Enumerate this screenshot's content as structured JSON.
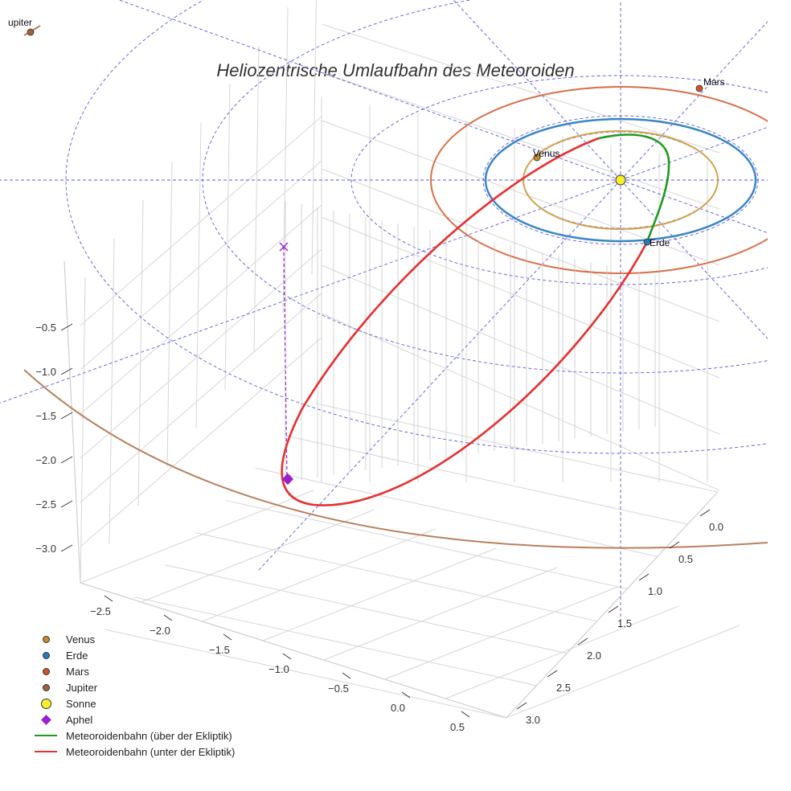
{
  "title": "Heliozentrische Umlaufbahn des Meteoroiden",
  "colors": {
    "venus": "#c98a2a",
    "earth": "#2d7bbf",
    "mars": "#d2522a",
    "jupiter": "#a0603a",
    "sun": "#f5f02a",
    "aphel": "#9b1fd1",
    "above": "#1f9a1f",
    "below": "#e63030",
    "grid": "#d6d6d6",
    "guide": "#5a5ae6",
    "venus_orbit": "#d4a24c",
    "earth_orbit": "#3a86c8",
    "mars_orbit": "#d9704a",
    "jupiter_orbit": "#b9805e"
  },
  "axes": {
    "z_ticks": [
      "−0.5",
      "−1.0",
      "−1.5",
      "−2.0",
      "−2.5",
      "−3.0"
    ],
    "x_ticks": [
      "−2.5",
      "−2.0",
      "−1.5",
      "−1.0",
      "−0.5",
      "0.0",
      "0.5"
    ],
    "y_ticks": [
      "0.0",
      "0.5",
      "1.0",
      "1.5",
      "2.0",
      "2.5",
      "3.0"
    ]
  },
  "planet_labels": {
    "venus": "Venus",
    "earth": "Erde",
    "mars": "Mars",
    "jupiter": "upiter"
  },
  "legend": [
    {
      "label": "Venus",
      "symbol": "dot",
      "color": "#c98a2a"
    },
    {
      "label": "Erde",
      "symbol": "dot",
      "color": "#2d7bbf"
    },
    {
      "label": "Mars",
      "symbol": "dot",
      "color": "#d2522a"
    },
    {
      "label": "Jupiter",
      "symbol": "dot",
      "color": "#a0603a"
    },
    {
      "label": "Sonne",
      "symbol": "big-dot",
      "color": "#f5f02a"
    },
    {
      "label": "Aphel",
      "symbol": "diamond",
      "color": "#9b1fd1"
    },
    {
      "label": "Meteoroidenbahn (über der Ekliptik)",
      "symbol": "line",
      "color": "#1f9a1f"
    },
    {
      "label": "Meteoroidenbahn (unter der Ekliptik)",
      "symbol": "line",
      "color": "#e63030"
    }
  ],
  "chart_data": {
    "type": "3d-line",
    "title": "Heliozentrische Umlaufbahn des Meteoroiden",
    "projection": "3d heliocentric view",
    "units": "AU",
    "x_range": [
      -2.7,
      0.6
    ],
    "y_range": [
      -0.1,
      3.1
    ],
    "z_range": [
      -3.3,
      0.0
    ],
    "bodies": [
      {
        "name": "Sonne",
        "x": 0.0,
        "y": 0.0,
        "z": 0.0
      },
      {
        "name": "Venus",
        "orbit_radius_au": 0.72
      },
      {
        "name": "Erde",
        "orbit_radius_au": 1.0
      },
      {
        "name": "Mars",
        "orbit_radius_au": 1.52
      },
      {
        "name": "Jupiter",
        "orbit_radius_au": 5.2
      }
    ],
    "aphel": {
      "label": "Aphel",
      "z_au": -3.1
    },
    "series": [
      {
        "name": "Meteoroidenbahn (über der Ekliptik)",
        "color": "#1f9a1f"
      },
      {
        "name": "Meteoroidenbahn (unter der Ekliptik)",
        "color": "#e63030"
      }
    ],
    "legend_position": "bottom-left"
  }
}
